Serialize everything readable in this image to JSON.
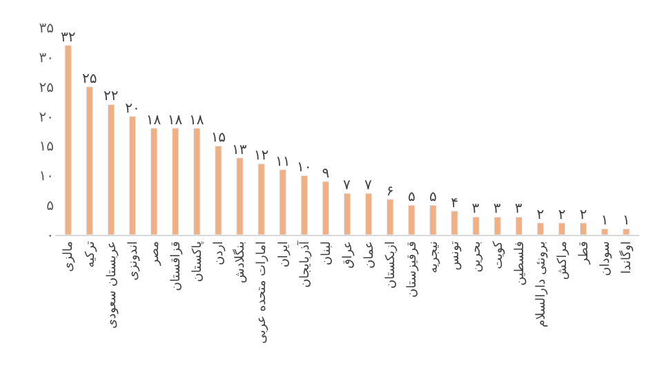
{
  "chart_data": {
    "type": "bar",
    "categories": [
      "مالزی",
      "ترکیه",
      "عربستان سعودی",
      "اندونزی",
      "مصر",
      "قزاقستان",
      "پاکستان",
      "اردن",
      "بنگلادش",
      "امارات متحده عربی",
      "ایران",
      "آذربایجان",
      "لبنان",
      "عراق",
      "عمان",
      "ازبکستان",
      "قرقیزستان",
      "نیجریه",
      "تونس",
      "بحرین",
      "کویت",
      "فلسطین",
      "برونئی دارالسلام",
      "مراکش",
      "قطر",
      "سودان",
      "اوگاندا"
    ],
    "values": [
      32,
      25,
      22,
      20,
      18,
      18,
      18,
      15,
      13,
      12,
      11,
      10,
      9,
      7,
      7,
      6,
      5,
      5,
      4,
      3,
      3,
      3,
      2,
      2,
      2,
      1,
      1
    ],
    "value_labels": [
      "۳۲",
      "۲۵",
      "۲۲",
      "۲۰",
      "۱۸",
      "۱۸",
      "۱۸",
      "۱۵",
      "۱۳",
      "۱۲",
      "۱۱",
      "۱۰",
      "۹",
      "۷",
      "۷",
      "۶",
      "۵",
      "۵",
      "۴",
      "۳",
      "۳",
      "۳",
      "۲",
      "۲",
      "۲",
      "۱",
      "۱"
    ],
    "color": "#f0b083",
    "ylim": [
      0,
      35
    ],
    "yticks": [
      {
        "value": 0,
        "label": "۰"
      },
      {
        "value": 5,
        "label": "۵"
      },
      {
        "value": 10,
        "label": "۱۰"
      },
      {
        "value": 15,
        "label": "۱۵"
      },
      {
        "value": 20,
        "label": "۲۰"
      },
      {
        "value": 25,
        "label": "۲۵"
      },
      {
        "value": 30,
        "label": "۳۰"
      },
      {
        "value": 35,
        "label": "۳۵"
      }
    ]
  }
}
